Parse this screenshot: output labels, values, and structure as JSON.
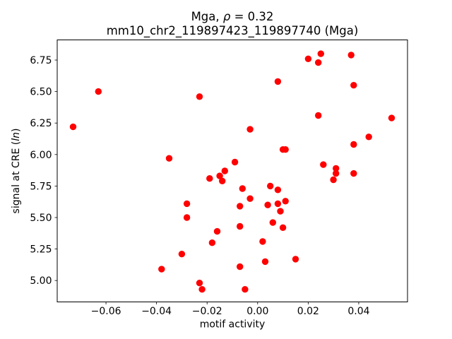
{
  "chart_data": {
    "type": "scatter",
    "title_parts": {
      "prefix": "Mga, ",
      "rho": "ρ",
      "suffix": " = 0.32"
    },
    "title": "Mga, ρ = 0.32",
    "subtitle": "mm10_chr2_119897423_119897740 (Mga)",
    "xlabel": "motif activity",
    "ylabel_parts": {
      "prefix": "signal at CRE (",
      "italic": "ln",
      "suffix": ")"
    },
    "ylabel": "signal at CRE (ln)",
    "legend": null,
    "grid": false,
    "marker": {
      "color": "#ff0000",
      "radius_px": 4.7
    },
    "background_color": "#ffffff",
    "spine_color": "#000000",
    "xlim": [
      -0.0793,
      0.0593
    ],
    "ylim": [
      4.83,
      6.91
    ],
    "x_tick_values": [
      -0.06,
      -0.04,
      -0.02,
      0.0,
      0.02,
      0.04
    ],
    "x_tick_labels": [
      "−0.06",
      "−0.04",
      "−0.02",
      "0.00",
      "0.02",
      "0.04"
    ],
    "y_tick_values": [
      5.0,
      5.25,
      5.5,
      5.75,
      6.0,
      6.25,
      6.5,
      6.75
    ],
    "y_tick_labels": [
      "5.00",
      "5.25",
      "5.50",
      "5.75",
      "6.00",
      "6.25",
      "6.50",
      "6.75"
    ],
    "points": [
      [
        -0.073,
        6.22
      ],
      [
        -0.063,
        6.5
      ],
      [
        -0.038,
        5.09
      ],
      [
        -0.035,
        5.97
      ],
      [
        -0.03,
        5.21
      ],
      [
        -0.028,
        5.61
      ],
      [
        -0.028,
        5.5
      ],
      [
        -0.023,
        6.46
      ],
      [
        -0.023,
        4.98
      ],
      [
        -0.022,
        4.93
      ],
      [
        -0.019,
        5.81
      ],
      [
        -0.018,
        5.3
      ],
      [
        -0.016,
        5.39
      ],
      [
        -0.015,
        5.83
      ],
      [
        -0.013,
        5.87
      ],
      [
        -0.014,
        5.79
      ],
      [
        -0.009,
        5.94
      ],
      [
        -0.007,
        5.59
      ],
      [
        -0.007,
        5.43
      ],
      [
        -0.007,
        5.11
      ],
      [
        -0.006,
        5.73
      ],
      [
        -0.005,
        4.93
      ],
      [
        -0.003,
        6.2
      ],
      [
        -0.003,
        5.65
      ],
      [
        0.002,
        5.31
      ],
      [
        0.003,
        5.15
      ],
      [
        0.004,
        5.6
      ],
      [
        0.005,
        5.75
      ],
      [
        0.006,
        5.46
      ],
      [
        0.008,
        6.58
      ],
      [
        0.008,
        5.72
      ],
      [
        0.008,
        5.61
      ],
      [
        0.009,
        5.55
      ],
      [
        0.01,
        6.04
      ],
      [
        0.011,
        6.04
      ],
      [
        0.01,
        5.42
      ],
      [
        0.011,
        5.63
      ],
      [
        0.015,
        5.17
      ],
      [
        0.02,
        6.76
      ],
      [
        0.024,
        6.73
      ],
      [
        0.025,
        6.8
      ],
      [
        0.024,
        6.31
      ],
      [
        0.026,
        5.92
      ],
      [
        0.03,
        5.8
      ],
      [
        0.031,
        5.89
      ],
      [
        0.031,
        5.85
      ],
      [
        0.037,
        6.79
      ],
      [
        0.038,
        6.55
      ],
      [
        0.038,
        6.08
      ],
      [
        0.038,
        5.85
      ],
      [
        0.044,
        6.14
      ],
      [
        0.053,
        6.29
      ]
    ]
  }
}
